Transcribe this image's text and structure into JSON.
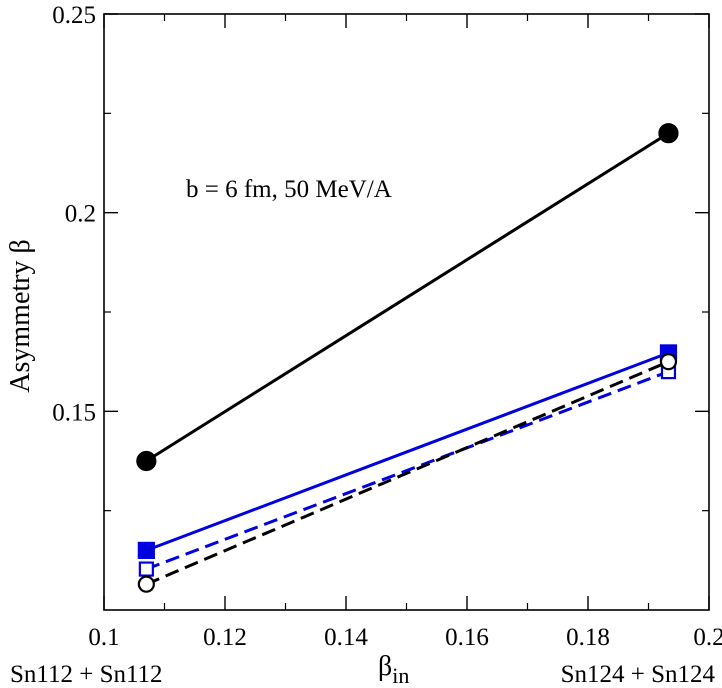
{
  "chart_data": {
    "type": "line",
    "title": "",
    "annotation": "b = 6 fm, 50 MeV/A",
    "xlabel": "β",
    "xlabel_subscript": "in",
    "ylabel": "Asymmetry β",
    "xlim": [
      0.1,
      0.2
    ],
    "ylim": [
      0.1,
      0.25
    ],
    "xticks": [
      0.1,
      0.12,
      0.14,
      0.16,
      0.18,
      0.2
    ],
    "xtick_labels": [
      "0.1",
      "0.12",
      "0.14",
      "0.16",
      "0.18",
      "0.2"
    ],
    "yticks": [
      0.15,
      0.2,
      0.25
    ],
    "ytick_labels": [
      "0.15",
      "0.2",
      "0.25"
    ],
    "x_left_label": "Sn112 + Sn112",
    "x_right_label": "Sn124 + Sn124",
    "grid": false,
    "legend": "none",
    "series": [
      {
        "name": "black-solid-filled-circle",
        "color": "#000000",
        "dash": "solid",
        "marker": "circle",
        "filled": true,
        "x": [
          0.107,
          0.1933
        ],
        "y": [
          0.1375,
          0.22
        ]
      },
      {
        "name": "blue-solid-filled-square",
        "color": "#0000e0",
        "dash": "solid",
        "marker": "square",
        "filled": true,
        "x": [
          0.107,
          0.1933
        ],
        "y": [
          0.115,
          0.1647
        ]
      },
      {
        "name": "blue-dashed-open-square",
        "color": "#0000e0",
        "dash": "dashed",
        "marker": "square",
        "filled": false,
        "x": [
          0.107,
          0.1933
        ],
        "y": [
          0.1103,
          0.16
        ]
      },
      {
        "name": "black-dashed-open-circle",
        "color": "#000000",
        "dash": "dashed",
        "marker": "circle",
        "filled": false,
        "x": [
          0.107,
          0.1933
        ],
        "y": [
          0.1065,
          0.1625
        ]
      }
    ]
  }
}
